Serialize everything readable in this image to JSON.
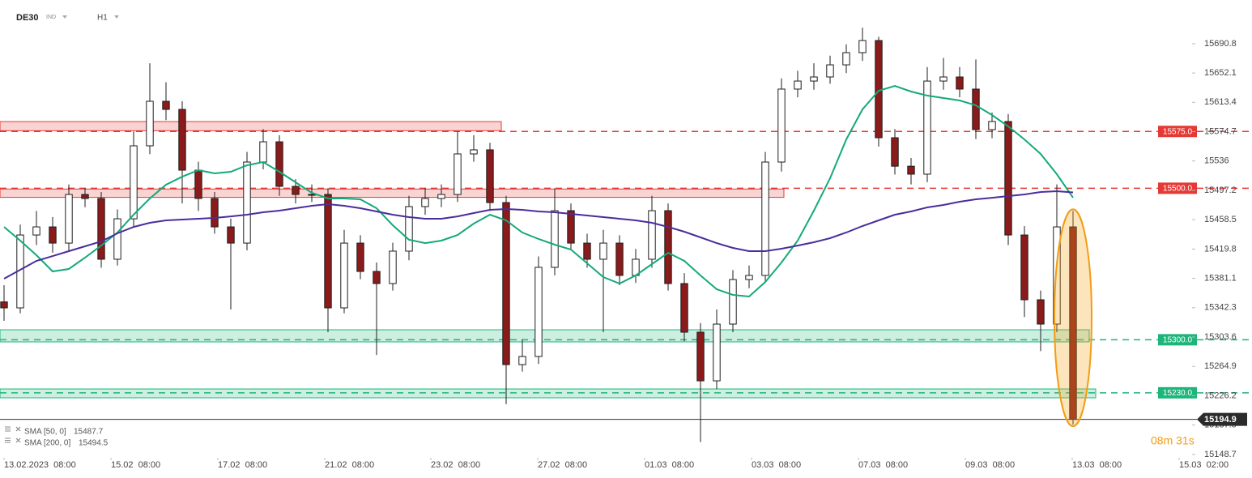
{
  "header": {
    "symbol": "DE30",
    "market": "IND",
    "interval": "H1"
  },
  "chart_data": {
    "type": "candlestick",
    "x": [
      0,
      1,
      2,
      3,
      4,
      5,
      6,
      7,
      8,
      9,
      10,
      11,
      12,
      13,
      14,
      15,
      16,
      17,
      18,
      19,
      20,
      21,
      22,
      23,
      24,
      25,
      26,
      27,
      28,
      29,
      30,
      31,
      32,
      33,
      34,
      35,
      36,
      37,
      38,
      39,
      40,
      41,
      42,
      43,
      44,
      45,
      46,
      47,
      48,
      49,
      50,
      51,
      52,
      53,
      54,
      55,
      56,
      57,
      58,
      59,
      60,
      61,
      62,
      63,
      64,
      65,
      66
    ],
    "open": [
      15350.0,
      15342.1,
      15438.3,
      15449.0,
      15427.6,
      15491.8,
      15486.5,
      15406.3,
      15459.7,
      15556.0,
      15614.8,
      15604.1,
      15523.9,
      15486.5,
      15449.0,
      15427.6,
      15534.6,
      15561.3,
      15502.5,
      15491.8,
      15491.8,
      15342.1,
      15427.6,
      15390.2,
      15374.2,
      15417.0,
      15475.8,
      15486.5,
      15491.8,
      15545.3,
      15550.7,
      15481.1,
      15267.2,
      15277.9,
      15395.6,
      15470.4,
      15427.6,
      15406.3,
      15427.6,
      15384.9,
      15406.3,
      15470.4,
      15374.2,
      15310.0,
      15245.8,
      15320.7,
      15379.5,
      15384.9,
      15534.6,
      15630.9,
      15641.5,
      15646.9,
      15662.9,
      15679.0,
      15695.0,
      15566.7,
      15529.1,
      15518.6,
      15641.5,
      15646.9,
      15630.9,
      15577.4,
      15588.1,
      15438.3,
      15352.8,
      15320.7,
      15449.0
    ],
    "high": [
      15372,
      15452,
      15470,
      15462,
      15505,
      15500,
      15495,
      15472,
      15575,
      15665,
      15640,
      15615,
      15535,
      15495,
      15460,
      15548,
      15578,
      15570,
      15512,
      15505,
      15500,
      15445,
      15438,
      15402,
      15428,
      15490,
      15500,
      15505,
      15575,
      15570,
      15560,
      15490,
      15300,
      15410,
      15500,
      15480,
      15440,
      15445,
      15438,
      15420,
      15490,
      15480,
      15388,
      15322,
      15340,
      15392,
      15398,
      15548,
      15645,
      15655,
      15665,
      15675,
      15690,
      15712,
      15700,
      15578,
      15540,
      15660,
      15672,
      15660,
      15670,
      15600,
      15598,
      15450,
      15365,
      15505,
      15470
    ],
    "low": [
      15325,
      15335,
      15425,
      15415,
      15418,
      15475,
      15395,
      15398,
      15450,
      15545,
      15590,
      15480,
      15470,
      15440,
      15340,
      15418,
      15525,
      15490,
      15480,
      15482,
      15310,
      15335,
      15380,
      15280,
      15365,
      15405,
      15465,
      15475,
      15482,
      15535,
      15470,
      15215,
      15258,
      15268,
      15385,
      15418,
      15395,
      15310,
      15372,
      15375,
      15395,
      15365,
      15298,
      15165,
      15235,
      15310,
      15368,
      15375,
      15522,
      15620,
      15630,
      15638,
      15652,
      15668,
      15555,
      15518,
      15505,
      15508,
      15630,
      15620,
      15565,
      15566,
      15425,
      15330,
      15285,
      15310,
      15188
    ],
    "close": [
      15342.1,
      15438.3,
      15449.0,
      15427.6,
      15491.8,
      15486.5,
      15406.3,
      15459.7,
      15556.0,
      15614.8,
      15604.1,
      15523.9,
      15486.5,
      15449.0,
      15427.6,
      15534.6,
      15561.3,
      15502.5,
      15491.8,
      15491.8,
      15342.1,
      15427.6,
      15390.2,
      15374.2,
      15417.0,
      15475.8,
      15486.5,
      15491.8,
      15545.3,
      15550.7,
      15481.1,
      15267.2,
      15277.9,
      15395.6,
      15470.4,
      15427.6,
      15406.3,
      15427.6,
      15384.9,
      15406.3,
      15470.4,
      15374.2,
      15310.0,
      15245.8,
      15320.7,
      15379.5,
      15384.9,
      15534.6,
      15630.9,
      15641.5,
      15646.9,
      15662.9,
      15679.0,
      15695.0,
      15566.7,
      15529.1,
      15518.6,
      15641.5,
      15646.9,
      15630.9,
      15577.4,
      15588.1,
      15438.3,
      15352.8,
      15320.7,
      15449.0,
      15194.9
    ],
    "up_color": "#ffffff",
    "down_color": "#8b1a1a",
    "wick_color": "#1e1e1e",
    "series": [
      {
        "name": "SMA [50, 0]",
        "color": "#14a97c",
        "values": [
          15449.0,
          15430.9,
          15411.6,
          15390.2,
          15393.4,
          15408.4,
          15424.4,
          15441.6,
          15465.1,
          15486.5,
          15504.7,
          15515.3,
          15523.9,
          15519.6,
          15521.8,
          15530.3,
          15534.6,
          15521.8,
          15507.9,
          15494.0,
          15486.5,
          15486.5,
          15485.4,
          15473.6,
          15451.2,
          15432.1,
          15427.6,
          15430.9,
          15438.3,
          15453.3,
          15465.1,
          15457.6,
          15441.6,
          15433.0,
          15425.5,
          15419.1,
          15400.9,
          15382.7,
          15374.2,
          15384.9,
          15399.9,
          15414.8,
          15404.1,
          15384.9,
          15366.7,
          15359.2,
          15357.1,
          15376.3,
          15402.0,
          15430.9,
          15470.4,
          15513.2,
          15564.5,
          15604.1,
          15628.7,
          15635.1,
          15627.6,
          15622.3,
          15619.1,
          15615.9,
          15609.5,
          15596.6,
          15581.7,
          15564.5,
          15545.3,
          15518.6,
          15487.7
        ]
      },
      {
        "name": "SMA [200, 0]",
        "color": "#4a2d9c",
        "values": [
          15380.6,
          15392.4,
          15404.1,
          15410.5,
          15417.0,
          15423.4,
          15429.8,
          15440.5,
          15449.0,
          15454.4,
          15457.6,
          15458.7,
          15459.8,
          15460.8,
          15462.9,
          15465.1,
          15468.3,
          15470.4,
          15473.6,
          15476.9,
          15479.0,
          15476.9,
          15473.6,
          15469.4,
          15465.1,
          15461.9,
          15459.8,
          15459.8,
          15462.9,
          15467.2,
          15471.5,
          15472.6,
          15471.5,
          15469.4,
          15468.3,
          15466.2,
          15464.0,
          15461.9,
          15459.8,
          15457.6,
          15454.4,
          15449.0,
          15442.6,
          15435.1,
          15427.6,
          15421.2,
          15417.0,
          15417.0,
          15420.2,
          15424.4,
          15428.7,
          15434.1,
          15441.6,
          15450.1,
          15457.6,
          15465.1,
          15469.4,
          15474.7,
          15477.9,
          15482.2,
          15485.4,
          15487.5,
          15489.7,
          15491.8,
          15495.0,
          15496.1,
          15494.5
        ]
      }
    ],
    "xlim": [
      -0.25,
      73.25
    ],
    "xticks": [
      {
        "value": 0,
        "label": "13.02.2023  08:00"
      },
      {
        "value": 6.6,
        "label": "15.02  08:00"
      },
      {
        "value": 13.2,
        "label": "17.02  08:00"
      },
      {
        "value": 19.8,
        "label": "21.02  08:00"
      },
      {
        "value": 26.35,
        "label": "23.02  08:00"
      },
      {
        "value": 32.95,
        "label": "27.02  08:00"
      },
      {
        "value": 39.55,
        "label": "01.03  08:00"
      },
      {
        "value": 46.15,
        "label": "03.03  08:00"
      },
      {
        "value": 52.75,
        "label": "07.03  08:00"
      },
      {
        "value": 59.35,
        "label": "09.03  08:00"
      },
      {
        "value": 65.95,
        "label": "13.03  08:00"
      },
      {
        "value": 72.55,
        "label": "15.03  02:00"
      }
    ],
    "ylim": [
      15146.4,
      15748.5
    ],
    "yticks": [
      15690.8,
      15652.1,
      15613.4,
      15574.7,
      15536.0,
      15497.2,
      15458.5,
      15419.8,
      15381.1,
      15342.3,
      15303.6,
      15264.9,
      15226.2,
      15187.5,
      15148.7
    ],
    "zones": [
      {
        "from": 15576,
        "to": 15588,
        "x_end": 30.7,
        "color": "#e53935"
      },
      {
        "from": 15488,
        "to": 15499,
        "x_end": 48.15,
        "color": "#e53935"
      },
      {
        "from": 15297.2,
        "to": 15313.2,
        "x_end": 67,
        "color": "#1db57a"
      },
      {
        "from": 15223.4,
        "to": 15235.1,
        "x_end": 67.4,
        "color": "#1db57a"
      }
    ],
    "levels": [
      {
        "value": 15575,
        "label": "15575.0",
        "color": "#e53935"
      },
      {
        "value": 15500,
        "label": "15500.0",
        "color": "#e53935"
      },
      {
        "value": 15300,
        "label": "15300.0",
        "color": "#1db57a"
      },
      {
        "value": 15230,
        "label": "15230.0",
        "color": "#1db57a"
      }
    ],
    "last_price": 15194.9,
    "countdown": "08m 31s"
  }
}
